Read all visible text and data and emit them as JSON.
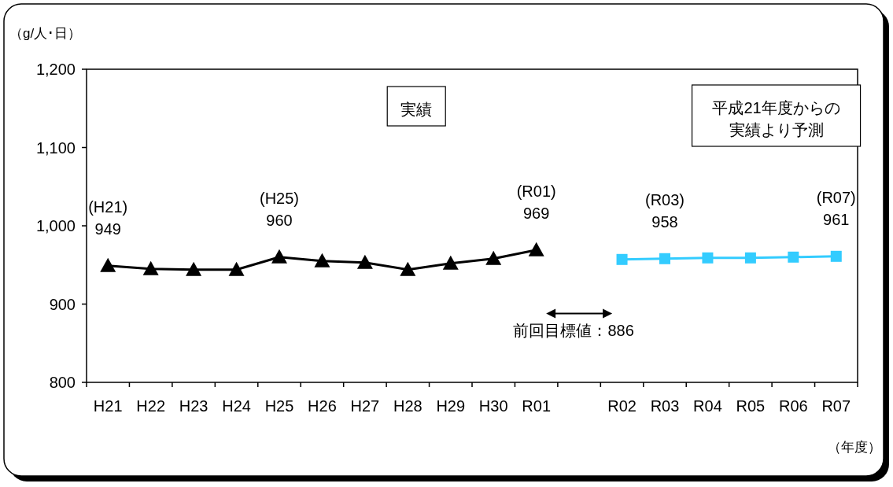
{
  "chart_data": {
    "type": "line",
    "ylabel": "（g/人･日）",
    "xlabel": "（年度）",
    "categories": [
      "H21",
      "H22",
      "H23",
      "H24",
      "H25",
      "H26",
      "H27",
      "H28",
      "H29",
      "H30",
      "R01",
      null,
      "R02",
      "R03",
      "R04",
      "R05",
      "R06",
      "R07"
    ],
    "ylim": [
      800,
      1200
    ],
    "yticks": [
      800,
      900,
      {
        "value": 1000,
        "label": "1,000"
      },
      {
        "value": 1100,
        "label": "1,100"
      },
      {
        "value": 1200,
        "label": "1,200"
      }
    ],
    "grid": false,
    "series": [
      {
        "color": "#000000",
        "marker": "triangle",
        "values": [
          949,
          945,
          944,
          944,
          960,
          955,
          953,
          944,
          952,
          958,
          969,
          null,
          null,
          null,
          null,
          null,
          null,
          null
        ],
        "value_labels": [
          "(H21)\n949",
          null,
          null,
          null,
          "(H25)\n960",
          null,
          null,
          null,
          null,
          null,
          "(R01)\n969",
          null,
          null,
          null,
          null,
          null,
          null,
          null
        ]
      },
      {
        "color": "#33ccff",
        "marker": "square",
        "values": [
          null,
          null,
          null,
          null,
          null,
          null,
          null,
          null,
          null,
          null,
          null,
          null,
          957,
          958,
          959,
          959,
          960,
          961
        ],
        "value_labels": [
          null,
          null,
          null,
          null,
          null,
          null,
          null,
          null,
          null,
          null,
          null,
          null,
          null,
          "(R03)\n958",
          null,
          null,
          null,
          "(R07)\n961"
        ]
      }
    ],
    "annotations": [
      "実績",
      "平成21年度からの実績より予測",
      "前回目標値：886"
    ]
  }
}
